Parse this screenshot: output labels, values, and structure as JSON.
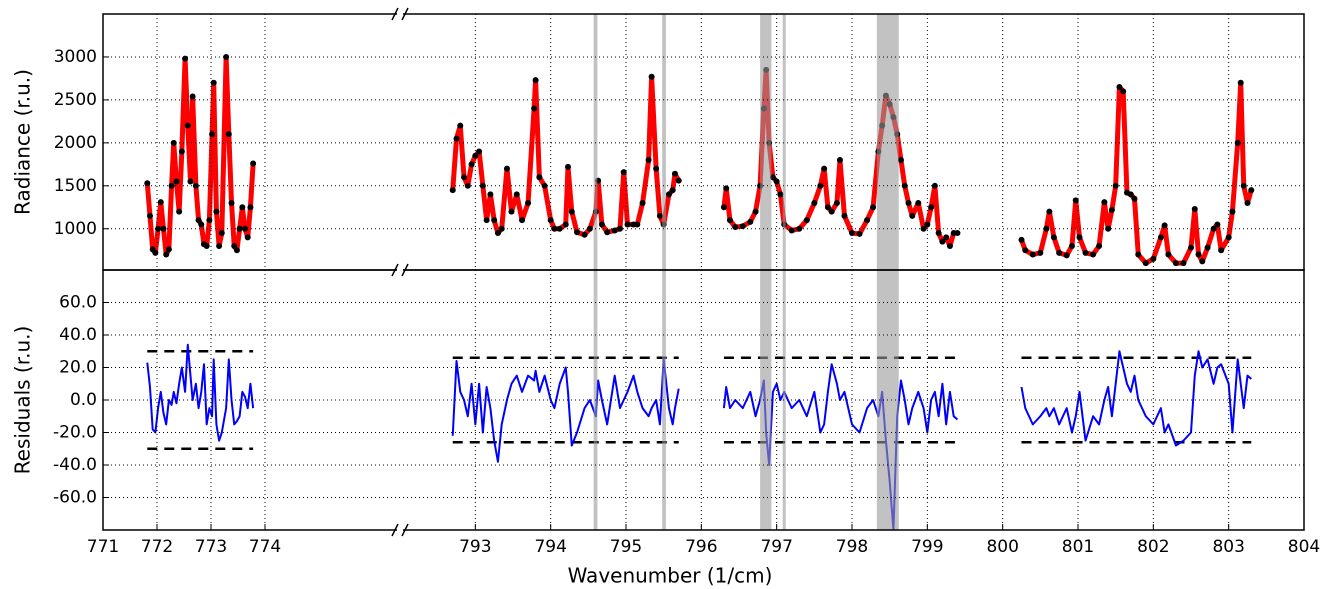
{
  "chart_data": {
    "type": "line",
    "xlabel": "Wavenumber (1/cm)",
    "ylabel": "Radiance (r.u.)",
    "y2label": "Residuals (r.u.)",
    "x": [
      771.82,
      771.87,
      771.92,
      771.97,
      772.02,
      772.07,
      772.12,
      772.17,
      772.22,
      772.27,
      772.31,
      772.36,
      772.41,
      772.46,
      772.52,
      772.57,
      772.62,
      772.66,
      772.72,
      772.77,
      772.82,
      772.87,
      772.92,
      772.97,
      773.02,
      773.05,
      773.1,
      773.15,
      773.2,
      773.28,
      773.33,
      773.38,
      773.43,
      773.48,
      773.53,
      773.58,
      773.63,
      773.68,
      773.73,
      773.78,
      null,
      792.7,
      792.75,
      792.8,
      792.85,
      792.9,
      792.95,
      793.0,
      793.05,
      793.1,
      793.15,
      793.2,
      793.25,
      793.3,
      793.35,
      793.42,
      793.48,
      793.55,
      793.62,
      793.7,
      793.78,
      793.8,
      793.85,
      793.92,
      794.0,
      794.05,
      794.12,
      794.2,
      794.23,
      794.28,
      794.35,
      794.45,
      794.52,
      794.6,
      794.63,
      794.68,
      794.75,
      794.85,
      794.92,
      794.97,
      795.02,
      795.1,
      795.15,
      795.22,
      795.3,
      795.34,
      795.4,
      795.45,
      795.5,
      795.57,
      795.62,
      795.65,
      795.7,
      null,
      796.3,
      796.33,
      796.38,
      796.45,
      796.55,
      796.65,
      796.72,
      796.78,
      796.83,
      796.86,
      796.9,
      796.95,
      797.0,
      797.05,
      797.1,
      797.2,
      797.3,
      797.4,
      797.5,
      797.58,
      797.63,
      797.68,
      797.73,
      797.8,
      797.84,
      797.9,
      798.0,
      798.1,
      798.2,
      798.28,
      798.35,
      798.4,
      798.45,
      798.5,
      798.55,
      798.6,
      798.65,
      798.7,
      798.75,
      798.8,
      798.88,
      798.95,
      799.0,
      799.05,
      799.1,
      799.15,
      799.2,
      799.25,
      799.3,
      799.35,
      799.4,
      null,
      800.25,
      800.3,
      800.4,
      800.5,
      800.58,
      800.62,
      800.68,
      800.75,
      800.85,
      800.92,
      800.97,
      801.02,
      801.1,
      801.2,
      801.28,
      801.35,
      801.4,
      801.45,
      801.5,
      801.55,
      801.6,
      801.65,
      801.7,
      801.75,
      801.8,
      801.9,
      802.0,
      802.1,
      802.15,
      802.2,
      802.3,
      802.4,
      802.5,
      802.55,
      802.6,
      802.65,
      802.72,
      802.8,
      802.85,
      802.9,
      803.0,
      803.05,
      803.12,
      803.16,
      803.2,
      803.25,
      803.3
    ],
    "series": [
      {
        "color": "#ff0000",
        "marker_color": "#000000",
        "values": [
          1530,
          1150,
          760,
          720,
          1000,
          1310,
          1000,
          700,
          760,
          1500,
          2000,
          1550,
          1200,
          1900,
          2980,
          2200,
          1550,
          2540,
          1500,
          1100,
          1050,
          820,
          800,
          1100,
          2100,
          2700,
          1200,
          800,
          950,
          3000,
          2100,
          1300,
          800,
          750,
          1000,
          1250,
          1000,
          900,
          1250,
          1760,
          null,
          1450,
          2050,
          2200,
          1600,
          1500,
          1750,
          1850,
          1900,
          1500,
          1100,
          1400,
          1100,
          950,
          1000,
          1700,
          1200,
          1400,
          1100,
          1300,
          2400,
          2730,
          1600,
          1500,
          1100,
          1000,
          1000,
          1050,
          1720,
          1200,
          960,
          930,
          1000,
          1200,
          1560,
          1050,
          960,
          980,
          1000,
          1660,
          1050,
          1050,
          1050,
          1300,
          1800,
          2770,
          1700,
          1150,
          1050,
          1400,
          1450,
          1640,
          1560,
          null,
          1250,
          1470,
          1100,
          1020,
          1030,
          1080,
          1200,
          1500,
          2400,
          2850,
          2000,
          1600,
          1550,
          1400,
          1050,
          980,
          1000,
          1100,
          1300,
          1500,
          1700,
          1250,
          1200,
          1300,
          1800,
          1150,
          950,
          940,
          1100,
          1250,
          1900,
          2200,
          2550,
          2450,
          2300,
          2100,
          1800,
          1500,
          1300,
          1150,
          1300,
          1000,
          1050,
          1250,
          1500,
          950,
          850,
          900,
          800,
          950,
          950,
          null,
          870,
          750,
          700,
          720,
          1000,
          1200,
          900,
          720,
          690,
          800,
          1330,
          900,
          720,
          700,
          800,
          1310,
          1000,
          1220,
          1500,
          2650,
          2600,
          1420,
          1400,
          1350,
          700,
          600,
          650,
          900,
          1040,
          700,
          600,
          600,
          780,
          1230,
          700,
          620,
          780,
          1000,
          1050,
          750,
          900,
          1200,
          2000,
          2700,
          1500,
          1300,
          1450
        ]
      },
      {
        "color": "#0000ff",
        "axis": "y2",
        "values": [
          23,
          8,
          -18,
          -20,
          -5,
          5,
          -8,
          -15,
          0,
          -3,
          5,
          -2,
          10,
          20,
          5,
          34,
          15,
          0,
          10,
          -5,
          5,
          22,
          -15,
          -5,
          -10,
          25,
          -15,
          -25,
          -20,
          -5,
          25,
          0,
          -15,
          -13,
          -10,
          5,
          2,
          -5,
          10,
          -5,
          null,
          -22,
          24,
          5,
          0,
          -10,
          10,
          -15,
          10,
          -20,
          8,
          -5,
          -25,
          -38,
          -15,
          0,
          10,
          15,
          5,
          15,
          12,
          18,
          5,
          15,
          0,
          -5,
          10,
          20,
          5,
          -28,
          -20,
          -5,
          0,
          -10,
          12,
          0,
          -15,
          15,
          -5,
          0,
          5,
          15,
          5,
          -5,
          -10,
          -5,
          0,
          -15,
          25,
          -5,
          -15,
          -5,
          7,
          null,
          -5,
          8,
          -5,
          0,
          -5,
          5,
          -10,
          0,
          12,
          -20,
          -40,
          5,
          10,
          0,
          5,
          -5,
          0,
          -10,
          5,
          -20,
          -15,
          5,
          22,
          10,
          0,
          5,
          -15,
          -20,
          -5,
          0,
          -10,
          5,
          -25,
          -50,
          -80,
          -10,
          12,
          0,
          -15,
          -5,
          5,
          -5,
          -20,
          0,
          5,
          -10,
          10,
          -15,
          5,
          -10,
          -12,
          null,
          8,
          -5,
          -15,
          -10,
          -5,
          -10,
          -5,
          -15,
          -5,
          -20,
          -10,
          5,
          -25,
          -10,
          -15,
          0,
          8,
          -10,
          10,
          30,
          20,
          10,
          5,
          15,
          0,
          -10,
          -15,
          -5,
          -20,
          -15,
          -28,
          -25,
          -20,
          15,
          30,
          20,
          25,
          10,
          20,
          22,
          10,
          -20,
          25,
          10,
          -5,
          15,
          13
        ]
      }
    ],
    "residual_bounds": [
      {
        "x": [
          771.82,
          773.78
        ],
        "values": [
          -30,
          30
        ]
      },
      {
        "x": [
          792.7,
          795.7
        ],
        "values": [
          -26,
          26
        ]
      },
      {
        "x": [
          796.3,
          799.4
        ],
        "values": [
          -26,
          26
        ]
      },
      {
        "x": [
          800.25,
          803.3
        ],
        "values": [
          -26,
          26
        ]
      }
    ],
    "spans": [
      [
        794.57,
        794.62
      ],
      [
        795.48,
        795.53
      ],
      [
        796.78,
        796.93
      ],
      [
        797.08,
        797.12
      ],
      [
        798.33,
        798.62
      ]
    ],
    "span_color": "#999999",
    "xlim": [
      [
        771,
        776.5
      ],
      [
        792,
        804
      ]
    ],
    "xticks": [
      771,
      772,
      773,
      774,
      793,
      794,
      795,
      796,
      797,
      798,
      799,
      800,
      801,
      802,
      803,
      804
    ],
    "ylim": [
      520,
      3500
    ],
    "yticks": [
      1000,
      1500,
      2000,
      2500,
      3000
    ],
    "y2lim": [
      -80,
      80
    ],
    "y2ticks": [
      {
        "value": -60,
        "label": "-60.0"
      },
      {
        "value": -40,
        "label": "-40.0"
      },
      {
        "value": -20,
        "label": "-20.0"
      },
      {
        "value": 0,
        "label": "0.0"
      },
      {
        "value": 20,
        "label": "20.0"
      },
      {
        "value": 40,
        "label": "40.0"
      },
      {
        "value": 60,
        "label": "60.0"
      }
    ],
    "grid": true
  }
}
